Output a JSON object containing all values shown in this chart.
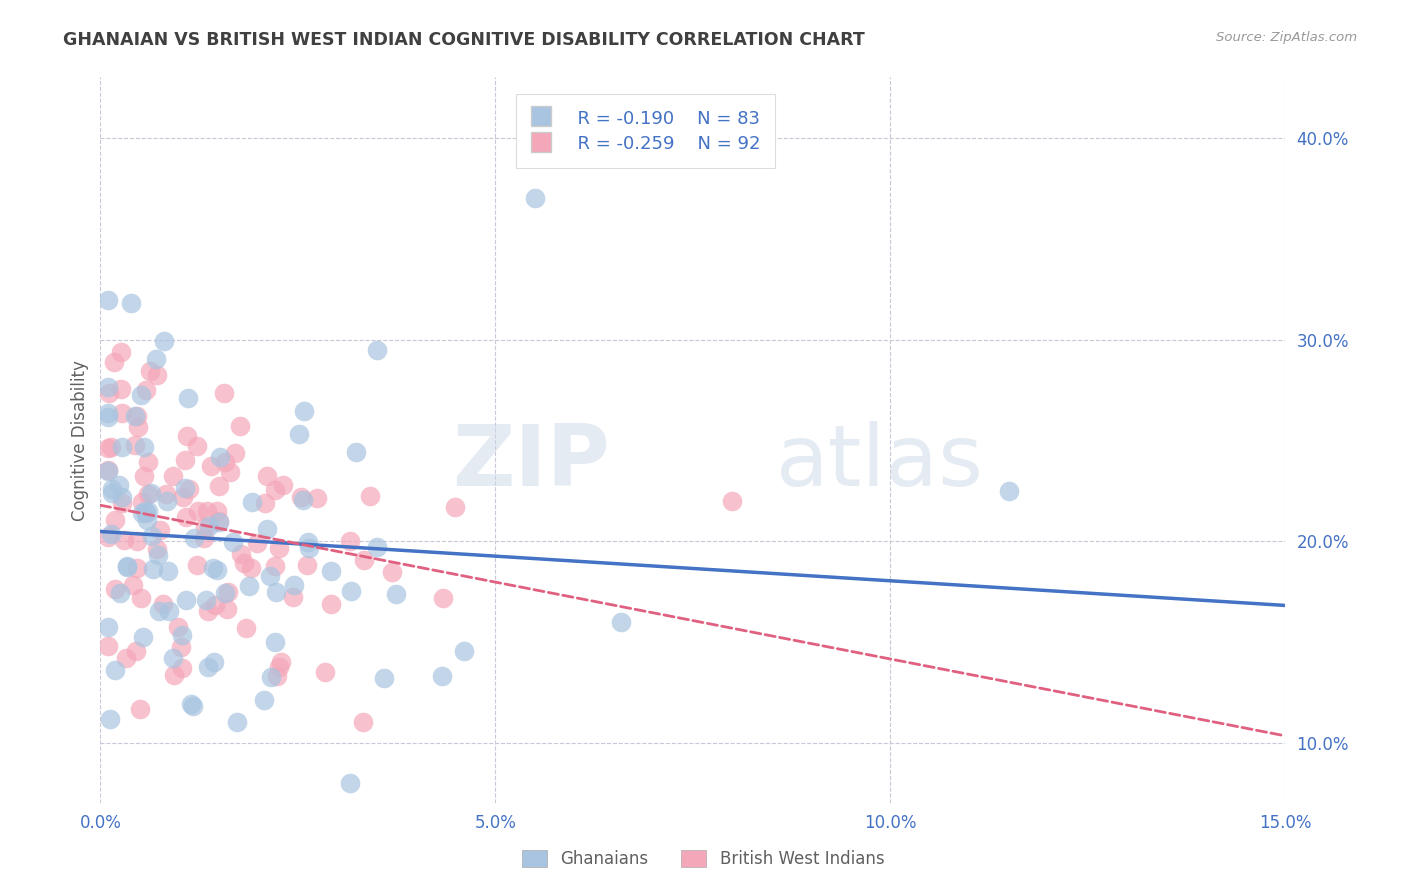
{
  "title": "GHANAIAN VS BRITISH WEST INDIAN COGNITIVE DISABILITY CORRELATION CHART",
  "source_text": "Source: ZipAtlas.com",
  "ylabel": "Cognitive Disability",
  "xlim": [
    0.0,
    15.0
  ],
  "ylim": [
    7.0,
    43.0
  ],
  "xlabel_vals": [
    0.0,
    5.0,
    10.0,
    15.0
  ],
  "ylabel_vals": [
    10.0,
    20.0,
    30.0,
    40.0
  ],
  "legend_r1": "R = -0.190",
  "legend_n1": "N = 83",
  "legend_r2": "R = -0.259",
  "legend_n2": "N = 92",
  "ghanaian_color": "#a8c4e0",
  "bwi_color": "#f4a7b9",
  "ghanaian_line_color": "#4472c4",
  "bwi_line_color": "#e06080",
  "title_color": "#404040",
  "axis_label_color": "#606060",
  "tick_label_color": "#4472c4",
  "grid_color": "#c8c8d8",
  "background_color": "#ffffff"
}
